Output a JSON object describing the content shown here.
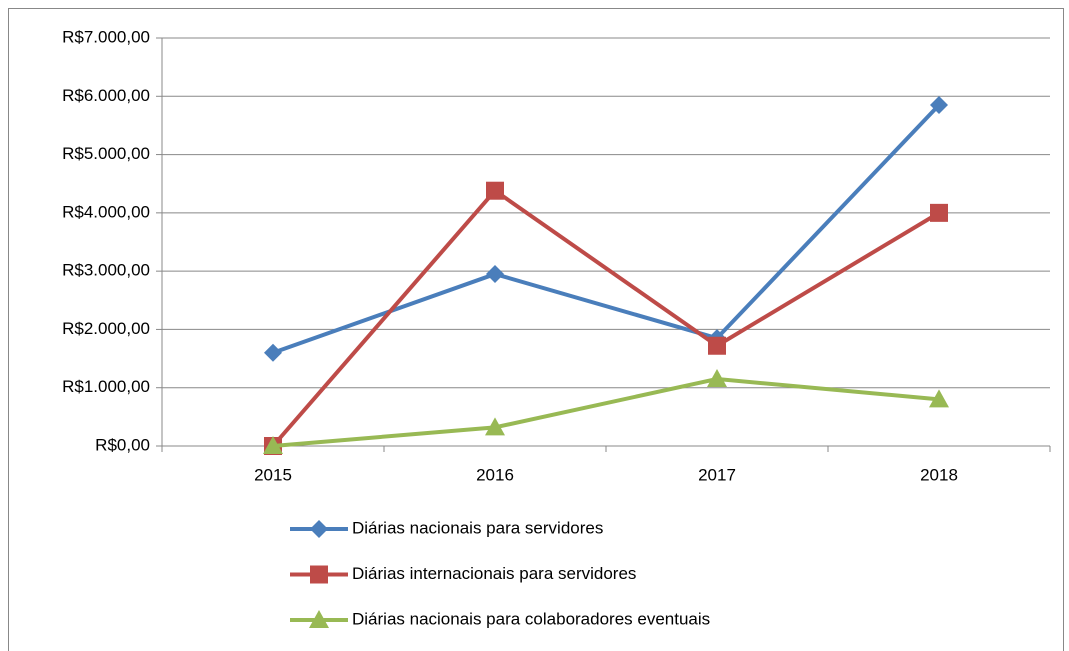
{
  "chart_data": {
    "type": "line",
    "categories": [
      "2015",
      "2016",
      "2017",
      "2018"
    ],
    "series": [
      {
        "name": "Diárias nacionais para servidores",
        "color": "#4a7ebb",
        "marker": "diamond",
        "values": [
          1600,
          2950,
          1850,
          5850
        ]
      },
      {
        "name": "Diárias internacionais para servidores",
        "color": "#be4b48",
        "marker": "square",
        "values": [
          0,
          4380,
          1720,
          4000
        ]
      },
      {
        "name": "Diárias nacionais para colaboradores eventuais",
        "color": "#98b954",
        "marker": "triangle",
        "values": [
          0,
          320,
          1150,
          800
        ]
      }
    ],
    "ylim": [
      0,
      7000
    ],
    "yticks": [
      {
        "value": 0,
        "label": "R$0,00"
      },
      {
        "value": 1000,
        "label": "R$1.000,00"
      },
      {
        "value": 2000,
        "label": "R$2.000,00"
      },
      {
        "value": 3000,
        "label": "R$3.000,00"
      },
      {
        "value": 4000,
        "label": "R$4.000,00"
      },
      {
        "value": 5000,
        "label": "R$5.000,00"
      },
      {
        "value": 6000,
        "label": "R$6.000,00"
      },
      {
        "value": 7000,
        "label": "R$7.000,00"
      }
    ],
    "grid": true,
    "legend": "bottom"
  }
}
